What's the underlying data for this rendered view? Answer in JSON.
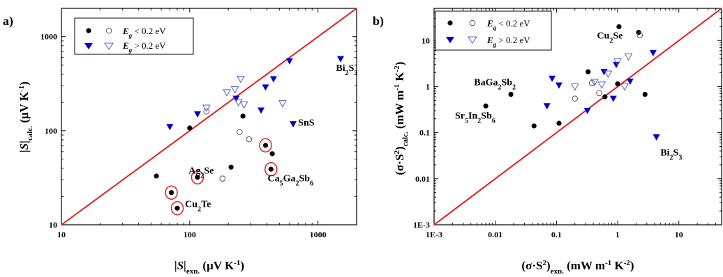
{
  "chart_data": [
    {
      "type": "scatter",
      "panel_label": "a)",
      "xscale": "log",
      "yscale": "log",
      "xlim": [
        10,
        2000
      ],
      "ylim": [
        10,
        2000
      ],
      "x_ticks": [
        "10",
        "100",
        "1000"
      ],
      "y_ticks": [
        "10",
        "100",
        "1000"
      ],
      "xlabel": {
        "main": "|S|",
        "sub": "exp.",
        "unit": " (μV K",
        "sup": "-1",
        "close": ")"
      },
      "ylabel": {
        "main": "|S|",
        "sub": "calc.",
        "unit": " (μV K",
        "sup": "-1",
        "close": ")"
      },
      "legend": {
        "placement": "top-left",
        "rows": [
          {
            "label": "E",
            "sub": "g",
            "rest": " < 0.2 eV"
          },
          {
            "label": "E",
            "sub": "g",
            "rest": " > 0.2 eV"
          }
        ]
      },
      "identity_line": {
        "color": "#e02020"
      },
      "series": [
        {
          "marker": "filled-circle",
          "color": "#000000",
          "points": [
            [
              55,
              33
            ],
            [
              72,
              22
            ],
            [
              80,
              15
            ],
            [
              100,
              107
            ],
            [
              115,
              32
            ],
            [
              210,
              41
            ],
            [
              260,
              143
            ],
            [
              390,
              70
            ],
            [
              430,
              39
            ],
            [
              440,
              57
            ]
          ]
        },
        {
          "marker": "open-circle",
          "color": "#555555",
          "points": [
            [
              135,
              160
            ],
            [
              180,
              31
            ],
            [
              245,
              97
            ],
            [
              290,
              81
            ]
          ]
        },
        {
          "marker": "filled-triangle",
          "color": "#0000cc",
          "points": [
            [
              70,
              110
            ],
            [
              115,
              150
            ],
            [
              230,
              220
            ],
            [
              360,
              165
            ],
            [
              390,
              290
            ],
            [
              450,
              355
            ],
            [
              600,
              550
            ],
            [
              640,
              118
            ],
            [
              1500,
              580
            ]
          ]
        },
        {
          "marker": "open-triangle",
          "color": "#5060c0",
          "points": [
            [
              135,
              175
            ],
            [
              195,
              255
            ],
            [
              225,
              275
            ],
            [
              240,
              200
            ],
            [
              250,
              355
            ],
            [
              265,
              190
            ],
            [
              530,
              195
            ]
          ]
        }
      ],
      "highlighted": [
        [
          72,
          22
        ],
        [
          80,
          15
        ],
        [
          115,
          32
        ],
        [
          390,
          70
        ],
        [
          430,
          39
        ]
      ],
      "annotations": [
        {
          "text": "Bi",
          "sub": "2",
          "text2": "S",
          "sub2": "3",
          "x": 1380,
          "y": 430
        },
        {
          "text": "SnS",
          "x": 700,
          "y": 113
        },
        {
          "text": "Ag",
          "sub": "2",
          "text2": "Se",
          "x": 98,
          "y": 35
        },
        {
          "text": "Ca",
          "sub": "5",
          "text2": "Ga",
          "sub2": "2",
          "text3": "Sb",
          "sub3": "6",
          "x": 405,
          "y": 29
        },
        {
          "text": "Cu",
          "sub": "2",
          "text2": "Te",
          "x": 92,
          "y": 15.5
        }
      ]
    },
    {
      "type": "scatter",
      "panel_label": "b)",
      "xscale": "log",
      "yscale": "log",
      "xlim": [
        0.001,
        50
      ],
      "ylim": [
        0.001,
        50
      ],
      "x_ticks": [
        "1E-3",
        "0.01",
        "0.1",
        "1",
        "10"
      ],
      "y_ticks": [
        "1E-3",
        "0.01",
        "0.1",
        "1",
        "10"
      ],
      "xlabel": {
        "main": "(σ·S",
        "sup": "2",
        "close": ")",
        "sub": "exp.",
        "unit": " (mW m",
        "sup2": "-1",
        "unit2": " K",
        "sup3": "-2",
        "close2": ")"
      },
      "ylabel": {
        "main": "(σ·S",
        "sup": "2",
        "close": ")",
        "sub": "calc.",
        "unit": " (mW m",
        "sup2": "-1",
        "unit2": " K",
        "sup3": "-2",
        "close2": ")"
      },
      "legend": {
        "placement": "top-left",
        "rows": [
          {
            "label": "E",
            "sub": "g",
            "rest": " < 0.2 eV"
          },
          {
            "label": "E",
            "sub": "g",
            "rest": " > 0.2 eV"
          }
        ]
      },
      "identity_line": {
        "color": "#e02020"
      },
      "series": [
        {
          "marker": "filled-circle",
          "color": "#000000",
          "points": [
            [
              0.007,
              0.38
            ],
            [
              0.018,
              0.68
            ],
            [
              0.043,
              0.14
            ],
            [
              0.11,
              0.16
            ],
            [
              0.33,
              2.1
            ],
            [
              0.62,
              0.6
            ],
            [
              1.0,
              1.15
            ],
            [
              1.05,
              20
            ],
            [
              2.2,
              15
            ],
            [
              2.8,
              0.68
            ]
          ]
        },
        {
          "marker": "open-circle",
          "color": "#555555",
          "points": [
            [
              0.2,
              0.55
            ],
            [
              0.38,
              1.2
            ],
            [
              0.5,
              0.72
            ],
            [
              2.3,
              13
            ]
          ]
        },
        {
          "marker": "filled-triangle",
          "color": "#0000cc",
          "points": [
            [
              0.07,
              0.38
            ],
            [
              0.085,
              1.5
            ],
            [
              0.11,
              1.07
            ],
            [
              0.32,
              0.3
            ],
            [
              0.6,
              2.1
            ],
            [
              0.85,
              0.55
            ],
            [
              0.95,
              3.0
            ],
            [
              1.6,
              1.3
            ],
            [
              3.8,
              5.4
            ],
            [
              4.3,
              0.08
            ]
          ]
        },
        {
          "marker": "open-triangle",
          "color": "#5060c0",
          "points": [
            [
              0.2,
              1.0
            ],
            [
              0.42,
              1.25
            ],
            [
              0.55,
              1.1
            ],
            [
              0.7,
              1.9
            ],
            [
              1.0,
              3.5
            ],
            [
              1.3,
              1.0
            ],
            [
              1.5,
              4.5
            ]
          ]
        }
      ],
      "annotations": [
        {
          "text": "Cu",
          "sub": "2",
          "text2": "Se",
          "x": 0.46,
          "y": 11
        },
        {
          "text": "BaGa",
          "sub": "2",
          "text2": "Sb",
          "sub2": "2",
          "x": 0.0045,
          "y": 1.07
        },
        {
          "text": "Sr",
          "sub": "5",
          "text2": "In",
          "sub2": "2",
          "text3": "Sb",
          "sub3": "6",
          "x": 0.0022,
          "y": 0.2
        },
        {
          "text": "Bi",
          "sub": "2",
          "text2": "S",
          "sub2": "3",
          "x": 5.0,
          "y": 0.032
        }
      ]
    }
  ]
}
